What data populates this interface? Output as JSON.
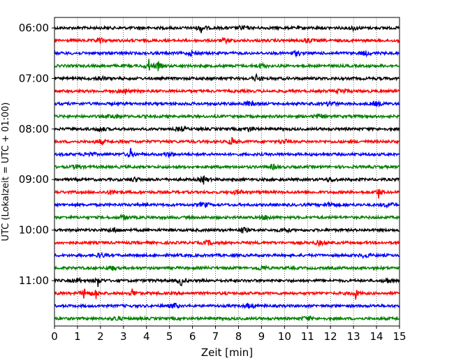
{
  "chart_data": {
    "type": "line",
    "title": "",
    "xlabel": "Zeit  [min]",
    "ylabel": "UTC (Lokalzeit = UTC + 01:00)",
    "xlim": [
      0,
      15
    ],
    "x_ticks": [
      "0",
      "1",
      "2",
      "3",
      "4",
      "5",
      "6",
      "7",
      "8",
      "9",
      "10",
      "11",
      "12",
      "13",
      "14",
      "15"
    ],
    "y_tick_labels": [
      "06:00",
      "07:00",
      "08:00",
      "09:00",
      "10:00",
      "11:00"
    ],
    "grid": "vertical dotted lines at each minute",
    "trace_colors": [
      "#000000",
      "#ff0000",
      "#0000ff",
      "#008000"
    ],
    "trace_rows": [
      "06:00",
      "06:15",
      "06:30",
      "06:45",
      "07:00",
      "07:15",
      "07:30",
      "07:45",
      "08:00",
      "08:15",
      "08:30",
      "08:45",
      "09:00",
      "09:15",
      "09:30",
      "09:45",
      "10:00",
      "10:15",
      "10:30",
      "10:45",
      "11:00",
      "11:15",
      "11:30",
      "11:45"
    ],
    "events_min": [
      [
        6.4,
        8.2,
        13.0
      ],
      [
        2.0,
        7.5,
        11.0
      ],
      [
        6.0,
        10.5,
        13.5
      ],
      [
        4.1,
        4.5,
        9.0
      ],
      [
        2.0,
        8.8
      ],
      [
        3.0,
        12.5
      ],
      [
        8.5,
        12.0,
        14.0
      ],
      [
        2.6,
        11.5
      ],
      [
        2.0,
        5.5,
        8.5
      ],
      [
        2.0,
        7.7,
        10.0
      ],
      [
        1.5,
        3.3,
        5.0
      ],
      [
        1.0,
        9.5
      ],
      [
        3.5,
        6.5,
        12.0
      ],
      [
        2.5,
        8.0,
        14.1
      ],
      [
        6.5,
        12.0,
        14.5
      ],
      [
        3.0,
        9.2
      ],
      [
        2.6,
        8.2,
        10.0
      ],
      [
        6.7,
        11.5
      ],
      [
        2.0,
        13.5
      ],
      [
        2.5,
        9.0
      ],
      [
        1.0,
        1.9,
        5.5,
        14.5
      ],
      [
        1.3,
        1.8,
        3.4,
        13.1
      ],
      [
        5.2,
        8.5
      ],
      [
        2.7,
        11.0
      ]
    ],
    "spike_min": [
      [
        6.4
      ],
      [],
      [],
      [
        4.5,
        4.1
      ],
      [
        8.8
      ],
      [],
      [],
      [],
      [],
      [
        7.7
      ],
      [
        3.3
      ],
      [],
      [
        6.5
      ],
      [
        14.1
      ],
      [],
      [],
      [
        8.2
      ],
      [],
      [],
      [],
      [
        1.9,
        5.5
      ],
      [
        1.3,
        1.8,
        3.4,
        13.1
      ],
      [
        5.2
      ],
      []
    ]
  }
}
